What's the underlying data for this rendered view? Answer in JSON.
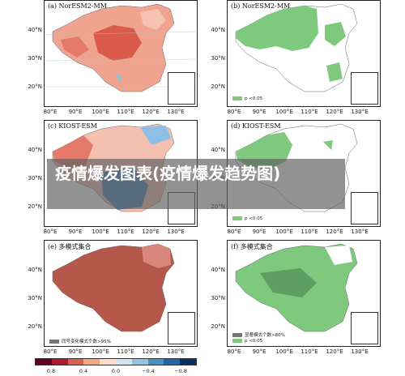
{
  "overlay_title": "疫情爆发图表(疫情爆发趋势图)",
  "panels": [
    {
      "title": "(a) NorESM2-MM",
      "legend": "",
      "fill": "red"
    },
    {
      "title": "(b) NorESM2-MM",
      "legend": "p <0.05",
      "fill": "green"
    },
    {
      "title": "(c) KIOST-ESM",
      "legend": "",
      "fill": "mixed"
    },
    {
      "title": "(d) KIOST-ESM",
      "legend": "p <0.05",
      "fill": "green-sparse"
    },
    {
      "title": "(e) 多模式集合",
      "legend": "同号变化模式个数>95%",
      "fill": "darkred"
    },
    {
      "title": "(f) 多模式集合",
      "legend": "显著模式个数>80%",
      "legend2": "p <0.05",
      "fill": "green"
    }
  ],
  "axes": {
    "lat_labels": [
      "40°N",
      "30°N",
      "20°N"
    ],
    "lon_labels": [
      "80°E",
      "90°E",
      "100°E",
      "110°E",
      "120°E",
      "130°E"
    ]
  },
  "colorbar": {
    "ticks": [
      "0.8",
      "0.4",
      "0.0",
      "−0.4",
      "−0.8"
    ],
    "colors": [
      "#67001f",
      "#b2182b",
      "#d6604d",
      "#f4a582",
      "#fddbc7",
      "#d1e5f0",
      "#92c5de",
      "#4393c3",
      "#2166ac",
      "#053061"
    ]
  },
  "colors": {
    "red_light": "#f4a582",
    "red_mid": "#e8836f",
    "red_dark": "#b2422e",
    "blue": "#4a86c5",
    "blue_light": "#8ec0e6",
    "green_light": "#8fd08a",
    "green_dark": "#5fae63",
    "sig_gray": "#777777"
  }
}
